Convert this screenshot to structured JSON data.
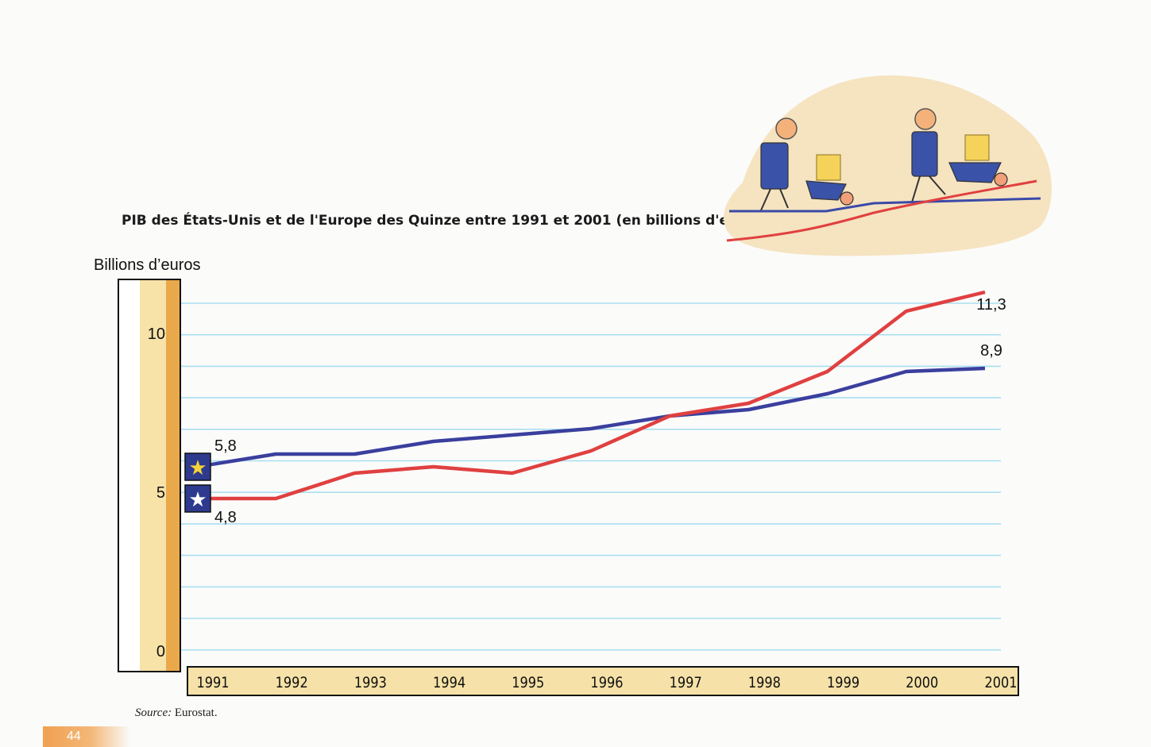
{
  "chart_data": {
    "type": "line",
    "title": "PIB des États-Unis et de l'Europe des Quinze entre 1991 et 2001 (en billions d'euros)",
    "ylabel": "Billions d’euros",
    "y_ticks": [
      "0",
      "5",
      "10"
    ],
    "ylim": [
      0,
      11.5
    ],
    "x": [
      "1991",
      "1992",
      "1993",
      "1994",
      "1995",
      "1996",
      "1997",
      "1998",
      "1999",
      "2000",
      "2001"
    ],
    "grid": true,
    "legend": "star-flag markers at left of each series",
    "series": [
      {
        "color": "#3a3f9e",
        "marker_icon": "yellow-star-icon",
        "values": [
          5.8,
          6.2,
          6.2,
          6.6,
          6.8,
          7.0,
          7.4,
          7.6,
          8.1,
          8.8,
          8.9
        ],
        "start_label": "5,8",
        "end_label": "8,9"
      },
      {
        "color": "#e04040",
        "marker_icon": "white-star-icon",
        "values": [
          4.8,
          4.8,
          5.6,
          5.8,
          5.6,
          6.3,
          7.4,
          7.8,
          8.8,
          10.7,
          11.3
        ],
        "start_label": "4,8",
        "end_label": "11,3"
      }
    ]
  },
  "source": {
    "label": "Source:",
    "value": "Eurostat."
  },
  "page_number": "44",
  "colors": {
    "axis_bar_light": "#f7e2a8",
    "axis_bar_dark": "#e9a94a",
    "gridline": "#a9dff0",
    "illustration_blob": "#f6e3c0"
  }
}
